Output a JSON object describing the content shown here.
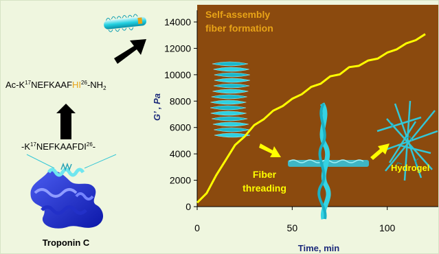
{
  "left_panel": {
    "peptide_prefix": "Ac-K",
    "peptide_sup1": "17",
    "peptide_mid1": "NEFKAAF",
    "peptide_hl": "HI",
    "peptide_sup2": "26",
    "peptide_suffix": "-NH",
    "peptide_sub": "2",
    "native_prefix": "-K",
    "native_sup1": "17",
    "native_mid": "NEFKAAFDI",
    "native_sup2": "26",
    "native_suffix": "-",
    "protein_label": "Troponin C",
    "highlight_color": "#e8a317"
  },
  "chart_data": {
    "type": "line",
    "title": "",
    "xlabel": "Time, min",
    "ylabel": "G’ , Pa",
    "xlim": [
      0,
      120
    ],
    "ylim": [
      0,
      14000
    ],
    "x_ticks": [
      0,
      50,
      100
    ],
    "x_tick_labels": [
      "0",
      "50",
      "100"
    ],
    "y_ticks": [
      0,
      2000,
      4000,
      6000,
      8000,
      10000,
      12000,
      14000
    ],
    "y_tick_labels": [
      "0",
      "2000",
      "4000",
      "6000",
      "8000",
      "10000",
      "12000",
      "14000"
    ],
    "plot_background": "#8b4a0e",
    "line_color": "#ffff00",
    "series": [
      {
        "x": [
          0,
          5,
          10,
          15,
          20,
          25,
          30,
          35,
          40,
          45,
          50,
          55,
          60,
          65,
          70,
          75,
          80,
          85,
          90,
          95,
          100,
          105,
          110,
          115,
          120
        ],
        "values": [
          300,
          1100,
          2300,
          3600,
          4600,
          5400,
          6100,
          6700,
          7200,
          7700,
          8100,
          8600,
          9000,
          9400,
          9800,
          10100,
          10500,
          10750,
          11000,
          11300,
          11600,
          12000,
          12300,
          12700,
          13000
        ]
      }
    ],
    "annotations": [
      {
        "text": "Self-assembly",
        "color": "#e8a317"
      },
      {
        "text": "fiber formation",
        "color": "#e8a317"
      },
      {
        "text": "Fiber",
        "color": "#ffff00"
      },
      {
        "text": "threading",
        "color": "#ffff00"
      },
      {
        "text": "Hydrogel",
        "color": "#ffff00"
      }
    ]
  }
}
